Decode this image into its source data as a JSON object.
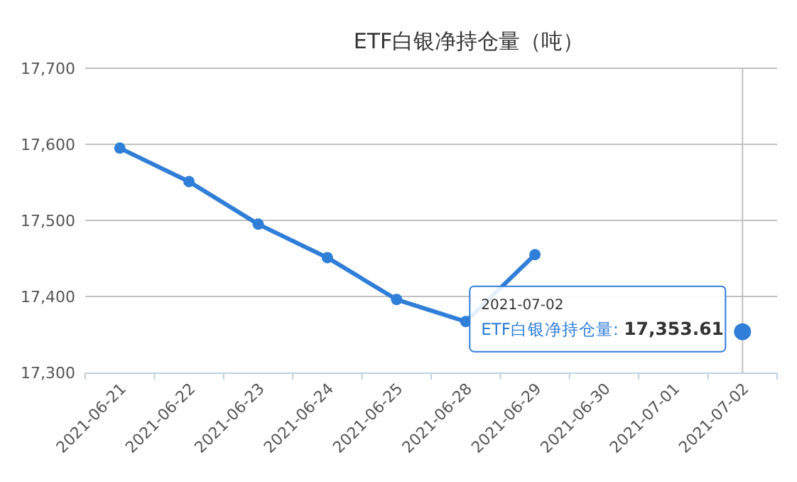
{
  "chart_data": {
    "type": "line",
    "title": "ETF白银净持仓量（吨）",
    "categories": [
      "2021-06-21",
      "2021-06-22",
      "2021-06-23",
      "2021-06-24",
      "2021-06-25",
      "2021-06-28",
      "2021-06-29",
      "2021-06-30",
      "2021-07-01",
      "2021-07-02"
    ],
    "series": [
      {
        "color": "#2f7ed8",
        "values": [
          17595,
          17551,
          17495,
          17451,
          17396,
          17367,
          17455,
          null,
          null,
          17353.61
        ]
      }
    ],
    "ylim": [
      17300,
      17700
    ],
    "yticks": [
      {
        "value": 17300,
        "label": "17,300"
      },
      {
        "value": 17400,
        "label": "17,400"
      },
      {
        "value": 17500,
        "label": "17,500"
      },
      {
        "value": 17600,
        "label": "17,600"
      },
      {
        "value": 17700,
        "label": "17,700"
      }
    ],
    "grid": "y",
    "marker": "circle",
    "line_style": "solid",
    "ref_lines": [
      {
        "axis": "x",
        "value": "2021-07-02",
        "color": "#c0c0c0"
      }
    ],
    "annotations": [
      "2021-07-02",
      "ETF白银净持仓量: 17,353.61"
    ]
  }
}
